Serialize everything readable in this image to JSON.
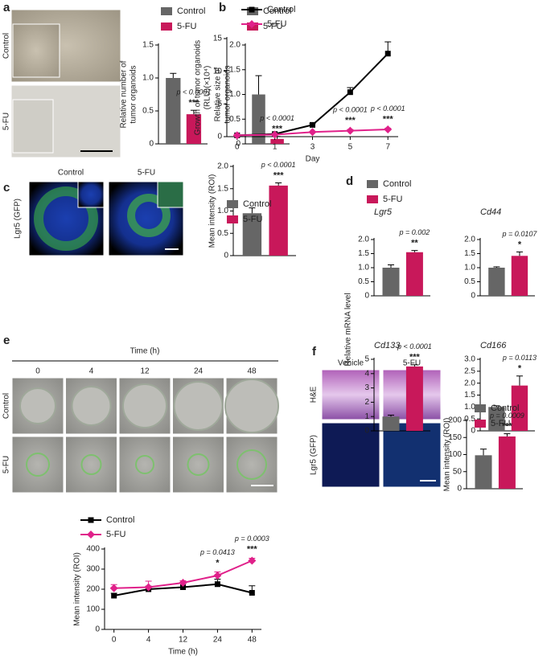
{
  "panel_letters": [
    "a",
    "b",
    "c",
    "d",
    "e",
    "f"
  ],
  "images": {
    "a": {
      "rows": [
        "Control",
        "5-FU"
      ]
    },
    "c": {
      "row": "Lgr5 (GFP)",
      "columns": [
        "Control",
        "5-FU"
      ]
    },
    "e": {
      "title": "Time (h)",
      "columns": [
        "0",
        "4",
        "12",
        "24",
        "48"
      ],
      "rows": [
        "Control",
        "5-FU"
      ]
    },
    "f": {
      "columns": [
        "Vehicle",
        "5-FU"
      ],
      "rows": [
        "H&E",
        "Lgr5 (GFP)"
      ]
    }
  },
  "chart_data": [
    {
      "type": "bar",
      "ylabel": [
        "Relative number of",
        "tumor organoids"
      ],
      "categories": [
        "Control",
        "5-FU"
      ],
      "values": [
        1,
        0.45
      ],
      "errors": [
        0.07,
        0.06
      ],
      "colors": [
        "#666666",
        "#c8185a"
      ],
      "ylim": [
        0,
        1.5
      ],
      "yticks": [
        0,
        0.5,
        {
          "value": 1,
          "label": "1.0"
        },
        1.5
      ],
      "annotations": [
        null,
        "p < 0.0001"
      ],
      "stars": [
        null,
        "***"
      ],
      "legend": "top"
    },
    {
      "type": "bar",
      "ylabel": [
        "Relative size of",
        "tumor organoids"
      ],
      "categories": [
        "Control",
        "5-FU"
      ],
      "values": [
        1,
        0.1
      ],
      "errors": [
        0.38,
        0.05
      ],
      "colors": [
        "#666666",
        "#c8185a"
      ],
      "ylim": [
        0,
        2
      ],
      "yticks": [
        0,
        0.5,
        {
          "value": 1,
          "label": "1.0"
        },
        1.5,
        {
          "value": 2,
          "label": "2.0"
        }
      ],
      "annotations": [
        null,
        "p < 0.0001"
      ],
      "stars": [
        null,
        "***"
      ],
      "legend": "top"
    },
    {
      "type": "line",
      "ylabel": [
        "Growth of tumor organoids",
        "(RLU)(×10⁴)"
      ],
      "xlabel": "Day",
      "categories": [
        "0",
        "1",
        "3",
        "5",
        "7"
      ],
      "series": [
        {
          "name": "Control",
          "color": "#000000",
          "marker": "square",
          "values": [
            0.2,
            0.4,
            1.8,
            6.8,
            12.7
          ],
          "errors": [
            0.1,
            0.1,
            0.2,
            0.7,
            1.8
          ]
        },
        {
          "name": "5-FU",
          "color": "#e0218a",
          "marker": "diamond",
          "values": [
            0.2,
            0.3,
            0.7,
            0.9,
            1.1
          ],
          "errors": [
            0.1,
            0.1,
            0.1,
            0.2,
            0.2
          ]
        }
      ],
      "ylim": [
        0,
        15
      ],
      "yticks": [
        0,
        5,
        10,
        15
      ],
      "annotations": [
        null,
        null,
        null,
        "p < 0.0001",
        "p < 0.0001"
      ],
      "stars": [
        null,
        null,
        null,
        "***",
        "***"
      ],
      "legend": "top-left"
    },
    {
      "type": "bar",
      "ylabel": [
        "Mean intensity (ROI)"
      ],
      "categories": [
        "Control",
        "5-FU"
      ],
      "values": [
        0.95,
        1.57
      ],
      "errors": [
        0.12,
        0.06
      ],
      "colors": [
        "#666666",
        "#c8185a"
      ],
      "ylim": [
        0,
        2
      ],
      "yticks": [
        0,
        0.5,
        {
          "value": 1,
          "label": "1.0"
        },
        1.5,
        {
          "value": 2,
          "label": "2.0"
        }
      ],
      "annotations": [
        null,
        "p < 0.0001"
      ],
      "stars": [
        null,
        "***"
      ],
      "legend": "top"
    },
    {
      "type": "bar",
      "title": "Lgr5",
      "ylabel": [
        "Relative mRNA level"
      ],
      "categories": [
        "Control",
        "5-FU"
      ],
      "values": [
        1,
        1.55
      ],
      "errors": [
        0.1,
        0.06
      ],
      "colors": [
        "#666666",
        "#c8185a"
      ],
      "ylim": [
        0,
        2
      ],
      "yticks": [
        0,
        0.5,
        {
          "value": 1,
          "label": "1.0"
        },
        1.5,
        {
          "value": 2,
          "label": "2.0"
        }
      ],
      "annotations": [
        null,
        "p = 0.002"
      ],
      "stars": [
        null,
        "**"
      ],
      "legend": "top"
    },
    {
      "type": "bar",
      "title": "Cd44",
      "values": [
        1,
        1.42
      ],
      "errors": [
        0.03,
        0.14
      ],
      "colors": [
        "#666666",
        "#c8185a"
      ],
      "ylim": [
        0,
        2
      ],
      "yticks": [
        0,
        0.5,
        {
          "value": 1,
          "label": "1.0"
        },
        1.5,
        {
          "value": 2,
          "label": "2.0"
        }
      ],
      "annotations": [
        null,
        "p = 0.0107"
      ],
      "stars": [
        null,
        "*"
      ]
    },
    {
      "type": "bar",
      "title": "Cd133",
      "values": [
        1,
        4.5
      ],
      "errors": [
        0.1,
        0.12
      ],
      "colors": [
        "#666666",
        "#c8185a"
      ],
      "ylim": [
        0,
        5
      ],
      "yticks": [
        0,
        1,
        2,
        3,
        4,
        5
      ],
      "annotations": [
        null,
        "p < 0.0001"
      ],
      "stars": [
        null,
        "***"
      ]
    },
    {
      "type": "bar",
      "title": "Cd166",
      "values": [
        1,
        1.9
      ],
      "errors": [
        0.05,
        0.4
      ],
      "colors": [
        "#666666",
        "#c8185a"
      ],
      "ylim": [
        0,
        3
      ],
      "yticks": [
        0,
        0.5,
        {
          "value": 1,
          "label": "1.0"
        },
        1.5,
        {
          "value": 2,
          "label": "2.0"
        },
        2.5,
        {
          "value": 3,
          "label": "3.0"
        }
      ],
      "annotations": [
        null,
        "p = 0.0113"
      ],
      "stars": [
        null,
        "*"
      ]
    },
    {
      "type": "line",
      "ylabel": [
        "Mean intensity (ROI)"
      ],
      "xlabel": "Time (h)",
      "categories": [
        "0",
        "4",
        "12",
        "24",
        "48"
      ],
      "series": [
        {
          "name": "Control",
          "color": "#000000",
          "marker": "square",
          "values": [
            168,
            200,
            210,
            225,
            182
          ],
          "errors": [
            12,
            15,
            18,
            25,
            35
          ]
        },
        {
          "name": "5-FU",
          "color": "#e0218a",
          "marker": "diamond",
          "values": [
            205,
            210,
            232,
            268,
            342
          ],
          "errors": [
            18,
            30,
            10,
            18,
            12
          ]
        }
      ],
      "ylim": [
        0,
        400
      ],
      "yticks": [
        0,
        100,
        200,
        300,
        400
      ],
      "annotations": [
        null,
        null,
        null,
        "p = 0.0413",
        "p = 0.0003"
      ],
      "stars": [
        null,
        null,
        null,
        "*",
        "***"
      ],
      "legend": "top-left"
    },
    {
      "type": "bar",
      "ylabel": [
        "Mean intensity (ROI)"
      ],
      "categories": [
        "Control",
        "5-FU"
      ],
      "values": [
        98,
        153
      ],
      "errors": [
        18,
        8
      ],
      "colors": [
        "#666666",
        "#c8185a"
      ],
      "ylim": [
        0,
        200
      ],
      "yticks": [
        0,
        50,
        100,
        150,
        200
      ],
      "annotations": [
        null,
        "p = 0.0009"
      ],
      "stars": [
        null,
        "***"
      ],
      "legend": "top"
    }
  ]
}
